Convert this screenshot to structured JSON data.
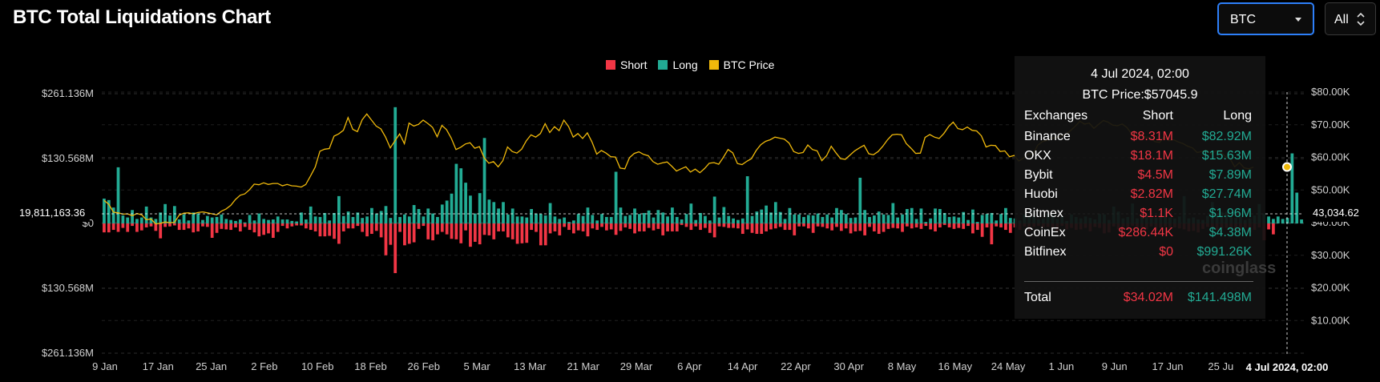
{
  "header": {
    "title": "BTC Total Liquidations Chart"
  },
  "controls": {
    "coin_select": "BTC",
    "range_select": "All"
  },
  "legend": [
    {
      "label": "Short",
      "color": "#f23645"
    },
    {
      "label": "Long",
      "color": "#22ab94"
    },
    {
      "label": "BTC Price",
      "color": "#f0b90b"
    }
  ],
  "crosshair": {
    "left_value": "19,811,163.36",
    "right_value": "43,034.62",
    "date_label": "4 Jul 2024, 02:00"
  },
  "tooltip": {
    "date": "4 Jul 2024, 02:00",
    "price": "BTC Price:$57045.9",
    "headers": {
      "exchange": "Exchanges",
      "short": "Short",
      "long": "Long"
    },
    "rows": [
      {
        "exchange": "Binance",
        "short": "$8.31M",
        "long": "$82.92M"
      },
      {
        "exchange": "OKX",
        "short": "$18.1M",
        "long": "$15.63M"
      },
      {
        "exchange": "Bybit",
        "short": "$4.5M",
        "long": "$7.89M"
      },
      {
        "exchange": "Huobi",
        "short": "$2.82M",
        "long": "$27.74M"
      },
      {
        "exchange": "Bitmex",
        "short": "$1.1K",
        "long": "$1.96M"
      },
      {
        "exchange": "CoinEx",
        "short": "$286.44K",
        "long": "$4.38M"
      },
      {
        "exchange": "Bitfinex",
        "short": "$0",
        "long": "$991.26K"
      }
    ],
    "total": {
      "label": "Total",
      "short": "$34.02M",
      "long": "$141.498M"
    }
  },
  "watermark": "coinglass",
  "chart_data": {
    "type": "bar",
    "title": "BTC Total Liquidations Chart",
    "y_left_ticks": [
      "$261.136M",
      "$130.568M",
      "$0",
      "$130.568M",
      "$261.136M"
    ],
    "y_left_range": [
      -261.136,
      261.136
    ],
    "y_right_ticks": [
      "$80.00K",
      "$70.00K",
      "$60.00K",
      "$50.00K",
      "$40.00K",
      "$30.00K",
      "$20.00K",
      "$10.00K"
    ],
    "y_right_range": [
      0,
      85000
    ],
    "x_ticks": [
      "9 Jan",
      "17 Jan",
      "25 Jan",
      "2 Feb",
      "10 Feb",
      "18 Feb",
      "26 Feb",
      "5 Mar",
      "13 Mar",
      "21 Mar",
      "29 Mar",
      "6 Apr",
      "14 Apr",
      "22 Apr",
      "30 Apr",
      "8 May",
      "16 May",
      "24 May",
      "1 Jun",
      "9 Jun",
      "17 Jun",
      "25 Ju"
    ],
    "grid": true,
    "legend_position": "top-center",
    "series": [
      {
        "name": "Long",
        "color": "#22ab94",
        "values": [
          50,
          47,
          32,
          113,
          16,
          12,
          27,
          9,
          12,
          34,
          12,
          9,
          22,
          39,
          16,
          35,
          8,
          18,
          6,
          22,
          20,
          7,
          15,
          12,
          13,
          18,
          9,
          7,
          5,
          8,
          2,
          17,
          6,
          20,
          9,
          7,
          8,
          14,
          8,
          8,
          5,
          4,
          22,
          8,
          34,
          14,
          13,
          21,
          6,
          21,
          55,
          15,
          24,
          13,
          22,
          11,
          14,
          31,
          20,
          25,
          35,
          11,
          234,
          13,
          18,
          14,
          37,
          29,
          14,
          30,
          20,
          13,
          38,
          46,
          60,
          120,
          111,
          82,
          56,
          20,
          61,
          172,
          48,
          43,
          30,
          43,
          18,
          30,
          14,
          14,
          12,
          29,
          20,
          19,
          16,
          41,
          14,
          9,
          12,
          3,
          6,
          19,
          15,
          32,
          17,
          6,
          19,
          13,
          13,
          104,
          32,
          15,
          17,
          30,
          19,
          21,
          26,
          12,
          27,
          22,
          14,
          32,
          13,
          8,
          19,
          40,
          7,
          21,
          15,
          6,
          54,
          12,
          33,
          15,
          10,
          7,
          10,
          95,
          15,
          24,
          28,
          36,
          22,
          43,
          23,
          9,
          31,
          18,
          18,
          13,
          17,
          16,
          20,
          13,
          18,
          12,
          31,
          27,
          19,
          11,
          12,
          92,
          27,
          13,
          16,
          24,
          18,
          17,
          41,
          12,
          18,
          29,
          31,
          9,
          30,
          3,
          10,
          30,
          29,
          21,
          13,
          14,
          12,
          23,
          7,
          28,
          3,
          17,
          19,
          21,
          6,
          19,
          31,
          11,
          10,
          6,
          18,
          15,
          13,
          8,
          10,
          20,
          17,
          9,
          14,
          5,
          18,
          13,
          10,
          14,
          11,
          8,
          19,
          18,
          7,
          34,
          24,
          10,
          13,
          40,
          10,
          20,
          18,
          11,
          11,
          19,
          32,
          12,
          10,
          14,
          55,
          10,
          12,
          8,
          7,
          15,
          43,
          20,
          23,
          23,
          12,
          11,
          14,
          7,
          10,
          16,
          39,
          20,
          14,
          9,
          14,
          9,
          11,
          141,
          62,
          8
        ]
      },
      {
        "name": "Short",
        "color": "#f23645",
        "values": [
          18,
          18,
          13,
          17,
          9,
          17,
          5,
          17,
          14,
          8,
          6,
          15,
          30,
          7,
          6,
          4,
          13,
          13,
          10,
          18,
          16,
          6,
          7,
          29,
          19,
          11,
          12,
          13,
          8,
          16,
          7,
          13,
          18,
          26,
          23,
          20,
          29,
          17,
          5,
          10,
          6,
          4,
          4,
          10,
          13,
          16,
          26,
          26,
          25,
          31,
          41,
          16,
          10,
          10,
          5,
          17,
          26,
          21,
          15,
          28,
          64,
          43,
          100,
          17,
          44,
          41,
          38,
          11,
          5,
          32,
          34,
          22,
          17,
          22,
          31,
          32,
          40,
          14,
          47,
          37,
          42,
          23,
          24,
          32,
          16,
          16,
          28,
          32,
          41,
          40,
          39,
          13,
          17,
          44,
          44,
          20,
          16,
          24,
          7,
          13,
          20,
          14,
          16,
          26,
          10,
          13,
          7,
          14,
          12,
          23,
          15,
          8,
          11,
          20,
          16,
          16,
          9,
          14,
          11,
          24,
          16,
          16,
          16,
          3,
          7,
          13,
          6,
          13,
          9,
          19,
          28,
          6,
          7,
          9,
          9,
          10,
          21,
          12,
          19,
          21,
          21,
          16,
          12,
          10,
          7,
          13,
          13,
          24,
          6,
          6,
          10,
          19,
          6,
          7,
          10,
          14,
          7,
          15,
          10,
          20,
          16,
          15,
          24,
          7,
          16,
          21,
          17,
          11,
          9,
          10,
          17,
          6,
          10,
          8,
          11,
          5,
          12,
          16,
          8,
          3,
          8,
          11,
          9,
          11,
          5,
          20,
          13,
          27,
          8,
          42,
          6,
          8,
          13,
          19,
          8,
          13,
          6,
          16,
          7,
          5,
          8,
          7,
          11,
          15,
          5,
          12,
          9,
          13,
          12,
          9,
          16,
          7,
          9,
          20,
          18,
          6,
          12,
          6,
          14,
          5,
          11,
          9,
          12,
          6,
          15,
          9,
          7,
          10,
          8,
          10,
          12,
          16,
          15,
          18,
          11,
          7,
          9,
          14,
          10,
          9,
          12,
          15,
          14,
          9,
          18,
          13,
          8,
          34,
          12,
          22
        ]
      }
    ],
    "price_series": {
      "name": "BTC Price",
      "color": "#f0b90b",
      "values": [
        46800,
        45600,
        43200,
        43000,
        42600,
        42700,
        42100,
        42800,
        42400,
        40900,
        41100,
        39600,
        39800,
        40200,
        40000,
        40100,
        42300,
        42900,
        43000,
        42700,
        43100,
        43300,
        43000,
        42700,
        42400,
        43500,
        44200,
        45300,
        47100,
        48400,
        48800,
        50100,
        51800,
        51600,
        52200,
        51700,
        52000,
        52000,
        51300,
        51700,
        51300,
        51200,
        50900,
        51700,
        54300,
        57000,
        61900,
        62500,
        62700,
        66500,
        67200,
        68300,
        72200,
        68600,
        67900,
        71500,
        73300,
        71400,
        69600,
        68700,
        66200,
        62900,
        65100,
        67200,
        64200,
        70500,
        69600,
        70100,
        71400,
        70400,
        69200,
        66300,
        69800,
        68500,
        65900,
        62400,
        63100,
        64100,
        64500,
        62800,
        63300,
        59900,
        58200,
        58700,
        57100,
        59000,
        63200,
        61800,
        61300,
        62500,
        65100,
        66900,
        66200,
        67300,
        70300,
        67600,
        69400,
        68200,
        71400,
        69500,
        66200,
        67300,
        65800,
        67500,
        64700,
        61000,
        62100,
        61300,
        60200,
        60100,
        56700,
        56500,
        59900,
        61200,
        61700,
        60900,
        60500,
        58700,
        57900,
        58300,
        58600,
        57300,
        55800,
        56500,
        57100,
        55500,
        56400,
        55300,
        56600,
        58200,
        58400,
        57900,
        60000,
        62400,
        61400,
        58100,
        57800,
        58800,
        59600,
        62100,
        63900,
        64900,
        65400,
        66200,
        65900,
        65600,
        64400,
        61800,
        61200,
        61500,
        63800,
        62400,
        62000,
        59000,
        60500,
        63400,
        61400,
        59600,
        59400,
        60700,
        62000,
        62900,
        63700,
        61100,
        60800,
        61800,
        63400,
        65400,
        66900,
        67100,
        66900,
        64200,
        62800,
        61200,
        61300,
        66100,
        67000,
        66200,
        65800,
        67300,
        69400,
        70800,
        68800,
        68500,
        69300,
        68300,
        68100,
        66600,
        63200,
        63700,
        63600,
        61800,
        62000,
        60200,
        60600,
        58900,
        59800,
        61100,
        60800,
        63700,
        64800,
        65200,
        65800,
        66100,
        66600,
        67100,
        68200,
        69500,
        71100,
        70200,
        70500,
        68900,
        70100,
        71300,
        70800,
        69900,
        69700,
        70200,
        69200,
        67300,
        66600,
        67200,
        66200,
        66100,
        64800,
        64600,
        66300,
        65100,
        65400,
        64700,
        64200,
        63400,
        62900,
        61500,
        61800,
        62200,
        61000,
        62000,
        61600,
        60300,
        59600,
        57100,
        58400,
        56800,
        56500,
        57000
      ]
    }
  }
}
